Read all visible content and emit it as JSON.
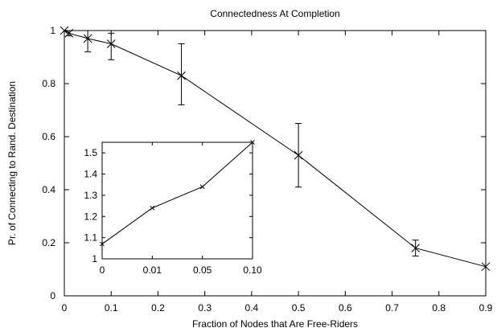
{
  "chart_data": [
    {
      "type": "line",
      "title": "Connectedness At Completion",
      "xlabel": "Fraction of Nodes that Are Free-Riders",
      "ylabel": "Pr. of Connecting to Rand. Destination",
      "xlim": [
        0,
        0.9
      ],
      "ylim": [
        0,
        1
      ],
      "xticks": [
        0,
        0.1,
        0.2,
        0.3,
        0.4,
        0.5,
        0.6,
        0.7,
        0.8,
        0.9
      ],
      "xtick_labels": [
        "0",
        "0.1",
        "0.2",
        "0.3",
        "0.4",
        "0.5",
        "0.6",
        "0.7",
        "0.8",
        "0.9"
      ],
      "yticks": [
        0,
        0.2,
        0.4,
        0.6,
        0.8,
        1
      ],
      "ytick_labels": [
        "0",
        "0.2",
        "0.4",
        "0.6",
        "0.8",
        "1"
      ],
      "grid": false,
      "marker": "x",
      "series": [
        {
          "x": [
            0,
            0.01,
            0.05,
            0.1,
            0.25,
            0.5,
            0.75,
            0.9
          ],
          "y": [
            1.0,
            0.99,
            0.97,
            0.95,
            0.83,
            0.53,
            0.18,
            0.11
          ],
          "err_low": [
            1.0,
            0.98,
            0.92,
            0.89,
            0.72,
            0.41,
            0.15,
            0.11
          ],
          "err_high": [
            1.0,
            1.0,
            1.0,
            0.99,
            0.95,
            0.65,
            0.21,
            0.11
          ]
        }
      ]
    },
    {
      "type": "line",
      "inset": true,
      "xticks": [
        0,
        0.01,
        0.05,
        0.1
      ],
      "xtick_labels": [
        "0",
        "0.01",
        "0.05",
        "0.10"
      ],
      "ylim": [
        1.0,
        1.55
      ],
      "yticks": [
        1,
        1.1,
        1.2,
        1.3,
        1.4,
        1.5
      ],
      "ytick_labels": [
        "1",
        "1.1",
        "1.2",
        "1.3",
        "1.4",
        "1.5"
      ],
      "marker": "x",
      "series": [
        {
          "x": [
            "0",
            "0.01",
            "0.05",
            "0.10"
          ],
          "y": [
            1.07,
            1.24,
            1.34,
            1.55
          ]
        }
      ]
    }
  ]
}
